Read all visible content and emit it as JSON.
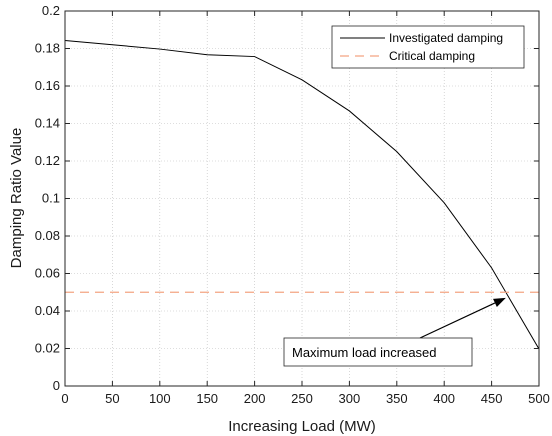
{
  "chart_data": {
    "type": "line",
    "xlabel": "Increasing Load (MW)",
    "ylabel": "Damping Ratio Value",
    "xlim": [
      0,
      500
    ],
    "ylim": [
      0,
      0.2
    ],
    "xticks": [
      0,
      50,
      100,
      150,
      200,
      250,
      300,
      350,
      400,
      450,
      500
    ],
    "yticks": [
      0,
      0.02,
      0.04,
      0.06,
      0.08,
      0.1,
      0.12,
      0.14,
      0.16,
      0.18,
      0.2
    ],
    "grid": true,
    "legend_position": "top-right",
    "series": [
      {
        "name": "Investigated damping",
        "style": "solid",
        "color": "#000000",
        "x": [
          0,
          50,
          100,
          150,
          200,
          250,
          300,
          350,
          400,
          450,
          500
        ],
        "y": [
          0.1843,
          0.182,
          0.1797,
          0.1767,
          0.1757,
          0.1633,
          0.1467,
          0.125,
          0.0977,
          0.063,
          0.0197
        ]
      },
      {
        "name": "Critical damping",
        "style": "dashed",
        "color": "#f4a582",
        "x": [
          0,
          500
        ],
        "y": [
          0.05,
          0.05
        ]
      }
    ],
    "annotations": [
      {
        "text": "Maximum load increased",
        "arrow_to": {
          "x": 465,
          "y": 0.047
        }
      }
    ]
  }
}
